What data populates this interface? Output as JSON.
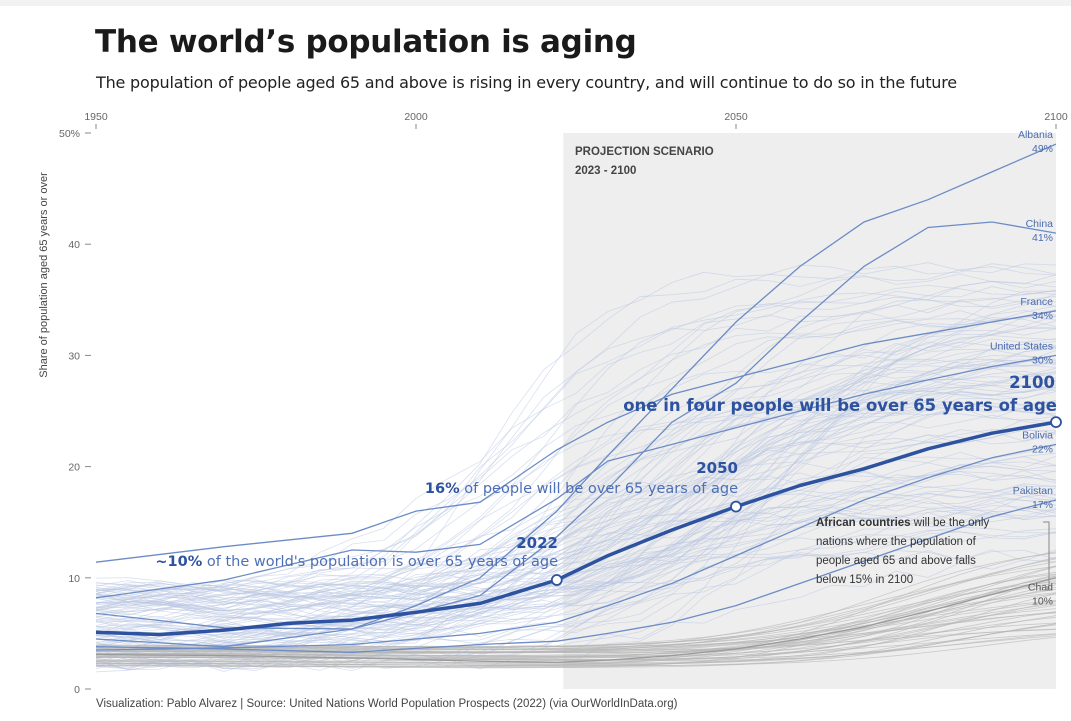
{
  "header": {
    "title": "The world’s population is aging",
    "subtitle": "The population of people aged 65 and above is rising in every country, and will continue to do so in the future"
  },
  "footer": {
    "source": "Visualization: Pablo Alvarez | Source: United Nations World Population Prospects (2022) (via OurWorldInData.org)"
  },
  "colors": {
    "world_line": "#2c52a0",
    "highlight_lines": "#6c8cc6",
    "background_lines": "#b9c7e1",
    "african_lines": "#b5b5b5",
    "projection_shade": "#eeeeee"
  },
  "projection": {
    "title": "PROJECTION SCENARIO",
    "range_label": "2023 - 2100",
    "start": 2023,
    "end": 2100
  },
  "annotations": {
    "a2022": {
      "year": "2022",
      "prefix": "~",
      "bold": "10%",
      "text": " of the world's population is over 65 years of age"
    },
    "a2050": {
      "year": "2050",
      "bold": "16%",
      "text": " of people will be over 65 years of age"
    },
    "a2100": {
      "year": "2100",
      "text": "one in four people will be over 65 years of age"
    },
    "africa": {
      "bold": "African countries",
      "line1": " will be the only",
      "line2": "nations where the population of",
      "line3": "people aged 65 and above falls",
      "line4": "below 15% in 2100"
    }
  },
  "chart_data": {
    "type": "line",
    "title": "The world’s population is aging",
    "ylabel": "Share of population aged 65 years or over",
    "xlabel": "",
    "xlim": [
      1950,
      2100
    ],
    "ylim": [
      0,
      50
    ],
    "x_ticks": [
      "1950",
      "2000",
      "2050",
      "2100"
    ],
    "y_ticks": [
      "0",
      "10",
      "20",
      "30",
      "40",
      "50%"
    ],
    "grid": false,
    "x_axis_position": "top",
    "series": [
      {
        "name": "World",
        "style": "highlight-world",
        "x": [
          1950,
          1960,
          1970,
          1980,
          1990,
          2000,
          2010,
          2022,
          2030,
          2040,
          2050,
          2060,
          2070,
          2080,
          2090,
          2100
        ],
        "values": [
          5.1,
          4.9,
          5.3,
          5.9,
          6.2,
          6.9,
          7.7,
          9.8,
          12.0,
          14.3,
          16.4,
          18.3,
          19.8,
          21.6,
          23.0,
          24.0
        ]
      },
      {
        "name": "Albania",
        "label": "Albania",
        "end_label": "49%",
        "style": "highlight",
        "x": [
          1950,
          1970,
          1990,
          2000,
          2010,
          2022,
          2030,
          2040,
          2050,
          2060,
          2070,
          2080,
          2090,
          2100
        ],
        "values": [
          6.8,
          5.5,
          5.4,
          7.5,
          10.0,
          16.0,
          21.0,
          27.0,
          33.0,
          38.0,
          42.0,
          44.0,
          46.5,
          49.0
        ]
      },
      {
        "name": "China",
        "label": "China",
        "end_label": "41%",
        "style": "highlight",
        "x": [
          1950,
          1970,
          1990,
          2000,
          2010,
          2022,
          2030,
          2040,
          2050,
          2060,
          2070,
          2080,
          2090,
          2100
        ],
        "values": [
          4.5,
          3.8,
          5.4,
          6.9,
          8.4,
          13.7,
          18.0,
          24.0,
          27.5,
          33.0,
          38.0,
          41.5,
          42.0,
          41.0
        ]
      },
      {
        "name": "France",
        "label": "France",
        "end_label": "34%",
        "style": "highlight",
        "x": [
          1950,
          1970,
          1990,
          2000,
          2010,
          2022,
          2030,
          2040,
          2050,
          2060,
          2070,
          2080,
          2090,
          2100
        ],
        "values": [
          11.4,
          12.8,
          14.0,
          16.0,
          16.8,
          21.5,
          24.0,
          26.5,
          28.0,
          29.5,
          31.0,
          32.0,
          33.0,
          34.0
        ]
      },
      {
        "name": "United States",
        "label": "United States",
        "end_label": "30%",
        "style": "highlight",
        "x": [
          1950,
          1970,
          1990,
          2000,
          2010,
          2022,
          2030,
          2040,
          2050,
          2060,
          2070,
          2080,
          2090,
          2100
        ],
        "values": [
          8.2,
          9.8,
          12.5,
          12.3,
          13.0,
          17.1,
          20.5,
          22.0,
          23.5,
          25.0,
          26.5,
          27.8,
          29.0,
          30.0
        ]
      },
      {
        "name": "Bolivia",
        "label": "Bolivia",
        "end_label": "22%",
        "style": "highlight",
        "x": [
          1950,
          1970,
          1990,
          2010,
          2022,
          2030,
          2040,
          2050,
          2060,
          2070,
          2080,
          2090,
          2100
        ],
        "values": [
          3.5,
          3.7,
          4.0,
          5.0,
          6.0,
          7.5,
          9.5,
          12.0,
          14.5,
          17.0,
          19.0,
          20.8,
          22.0
        ]
      },
      {
        "name": "Pakistan",
        "label": "Pakistan",
        "end_label": "17%",
        "style": "highlight",
        "x": [
          1950,
          1970,
          1990,
          2010,
          2022,
          2030,
          2040,
          2050,
          2060,
          2070,
          2080,
          2090,
          2100
        ],
        "values": [
          3.8,
          3.6,
          3.3,
          4.0,
          4.3,
          5.0,
          6.0,
          7.5,
          9.5,
          11.5,
          13.5,
          15.5,
          17.0
        ]
      },
      {
        "name": "Chad",
        "label": "Chad",
        "end_label": "10%",
        "style": "african",
        "x": [
          1950,
          1970,
          1990,
          2010,
          2022,
          2030,
          2040,
          2050,
          2060,
          2070,
          2080,
          2090,
          2100
        ],
        "values": [
          3.1,
          3.0,
          2.8,
          2.5,
          2.4,
          2.6,
          3.0,
          3.6,
          4.5,
          5.6,
          7.0,
          8.5,
          10.0
        ]
      }
    ]
  }
}
